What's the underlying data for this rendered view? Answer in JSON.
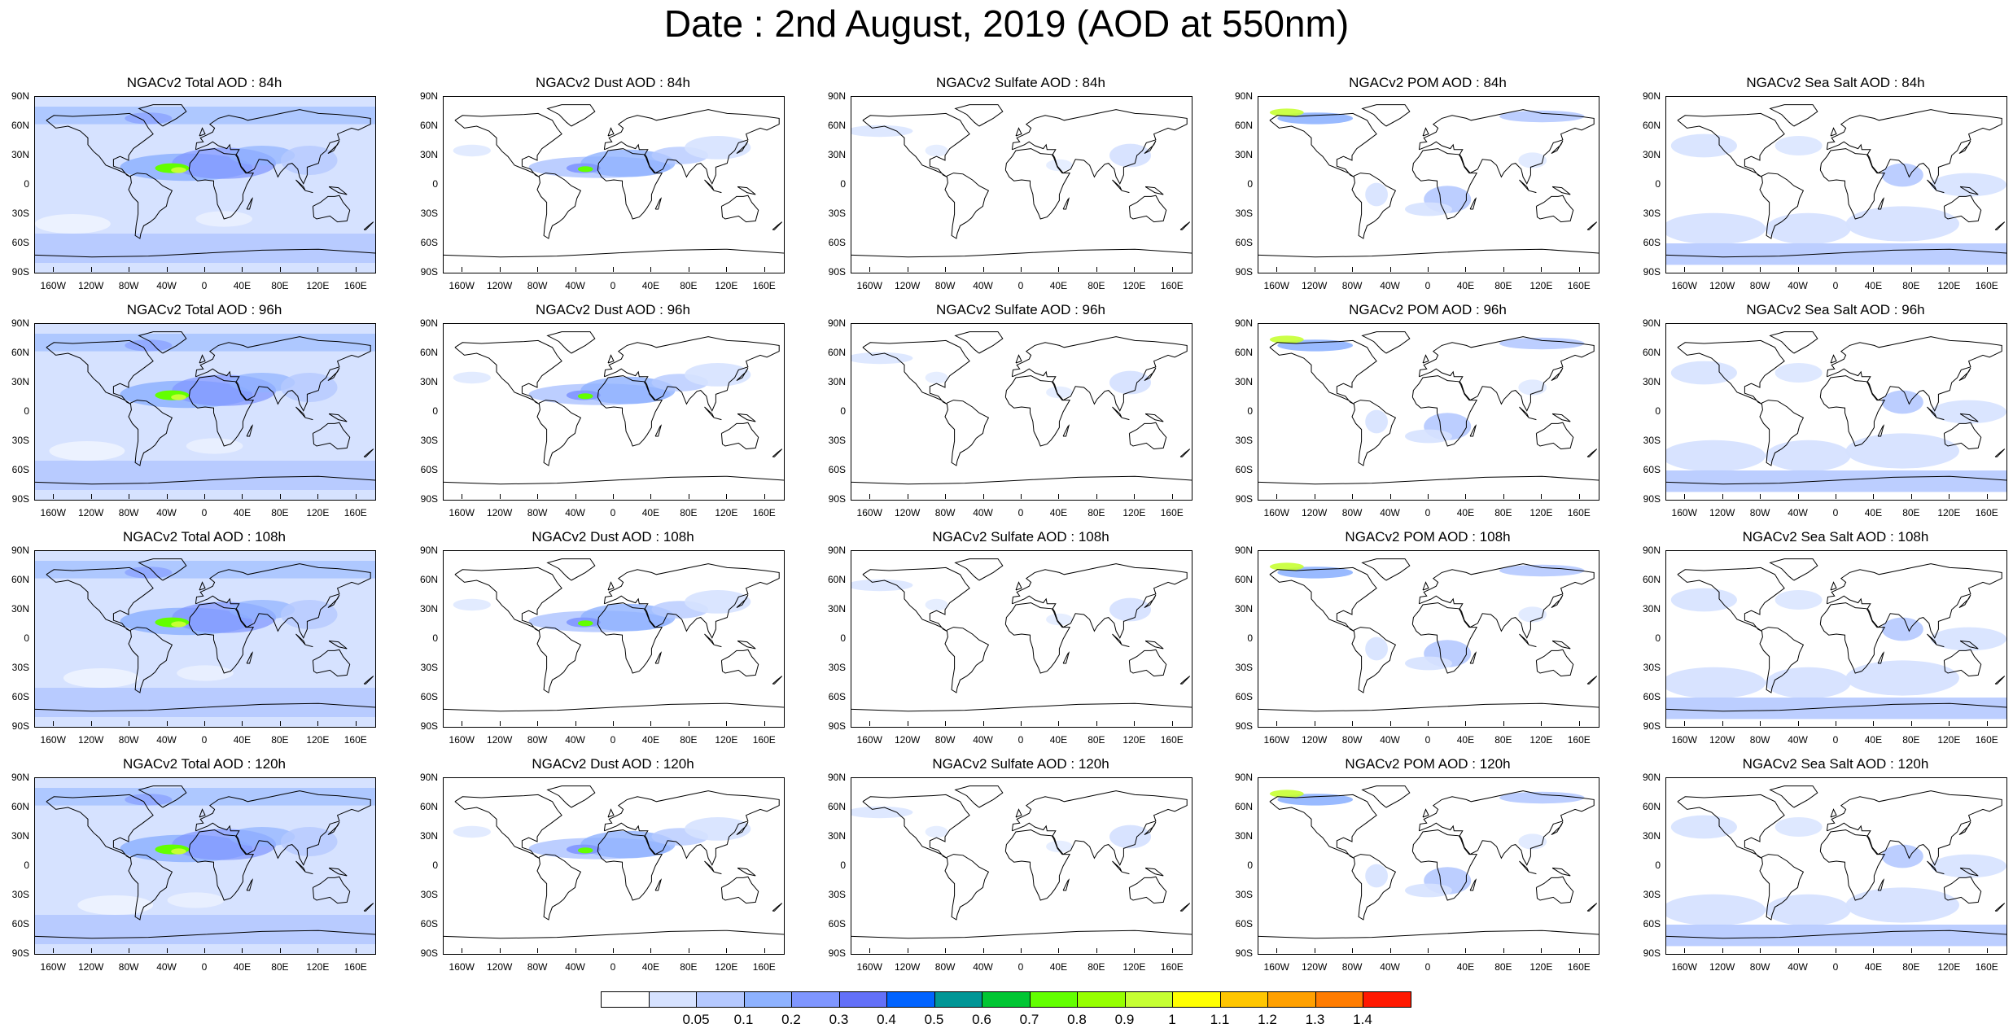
{
  "title": "Date : 2nd August, 2019 (AOD at 550nm)",
  "panels": [
    [
      "NGACv2 Total AOD : 84h",
      "NGACv2 Dust AOD : 84h",
      "NGACv2 Sulfate AOD : 84h",
      "NGACv2 POM AOD : 84h",
      "NGACv2 Sea Salt AOD : 84h"
    ],
    [
      "NGACv2 Total AOD : 96h",
      "NGACv2 Dust AOD : 96h",
      "NGACv2 Sulfate AOD : 96h",
      "NGACv2 POM AOD : 96h",
      "NGACv2 Sea Salt AOD : 96h"
    ],
    [
      "NGACv2 Total AOD : 108h",
      "NGACv2 Dust AOD : 108h",
      "NGACv2 Sulfate AOD : 108h",
      "NGACv2 POM AOD : 108h",
      "NGACv2 Sea Salt AOD : 108h"
    ],
    [
      "NGACv2 Total AOD : 120h",
      "NGACv2 Dust AOD : 120h",
      "NGACv2 Sulfate AOD : 120h",
      "NGACv2 POM AOD : 120h",
      "NGACv2 Sea Salt  AOD : 120h"
    ]
  ],
  "lat_ticks": [
    "90N",
    "60N",
    "30N",
    "0",
    "30S",
    "60S",
    "90S"
  ],
  "lon_ticks": [
    "160W",
    "120W",
    "80W",
    "40W",
    "0",
    "40E",
    "80E",
    "120E",
    "160E"
  ],
  "lon_tick_values": [
    -160,
    -120,
    -80,
    -40,
    0,
    40,
    80,
    120,
    160
  ],
  "colorbar": {
    "labels": [
      "0.05",
      "0.1",
      "0.2",
      "0.3",
      "0.4",
      "0.5",
      "0.6",
      "0.7",
      "0.8",
      "0.9",
      "1",
      "1.1",
      "1.2",
      "1.3",
      "1.4"
    ],
    "colors": [
      "#ffffff",
      "#d6e2ff",
      "#b5c9ff",
      "#8eb2ff",
      "#7f96ff",
      "#6370f8",
      "#0063ff",
      "#009696",
      "#00c633",
      "#63ff00",
      "#96ff00",
      "#c6ff33",
      "#ffff00",
      "#ffc600",
      "#ffa000",
      "#ff7c00",
      "#ff1900"
    ]
  },
  "field_colors": {
    "ocean_light": "#d6e2ff",
    "ocean_mid": "#b5c9ff",
    "band_mid": "#8eb2ff",
    "band_strong": "#7f96ff",
    "band_core": "#6370f8",
    "hot_green": "#63ff00",
    "hot_yellow": "#c6ff33"
  }
}
